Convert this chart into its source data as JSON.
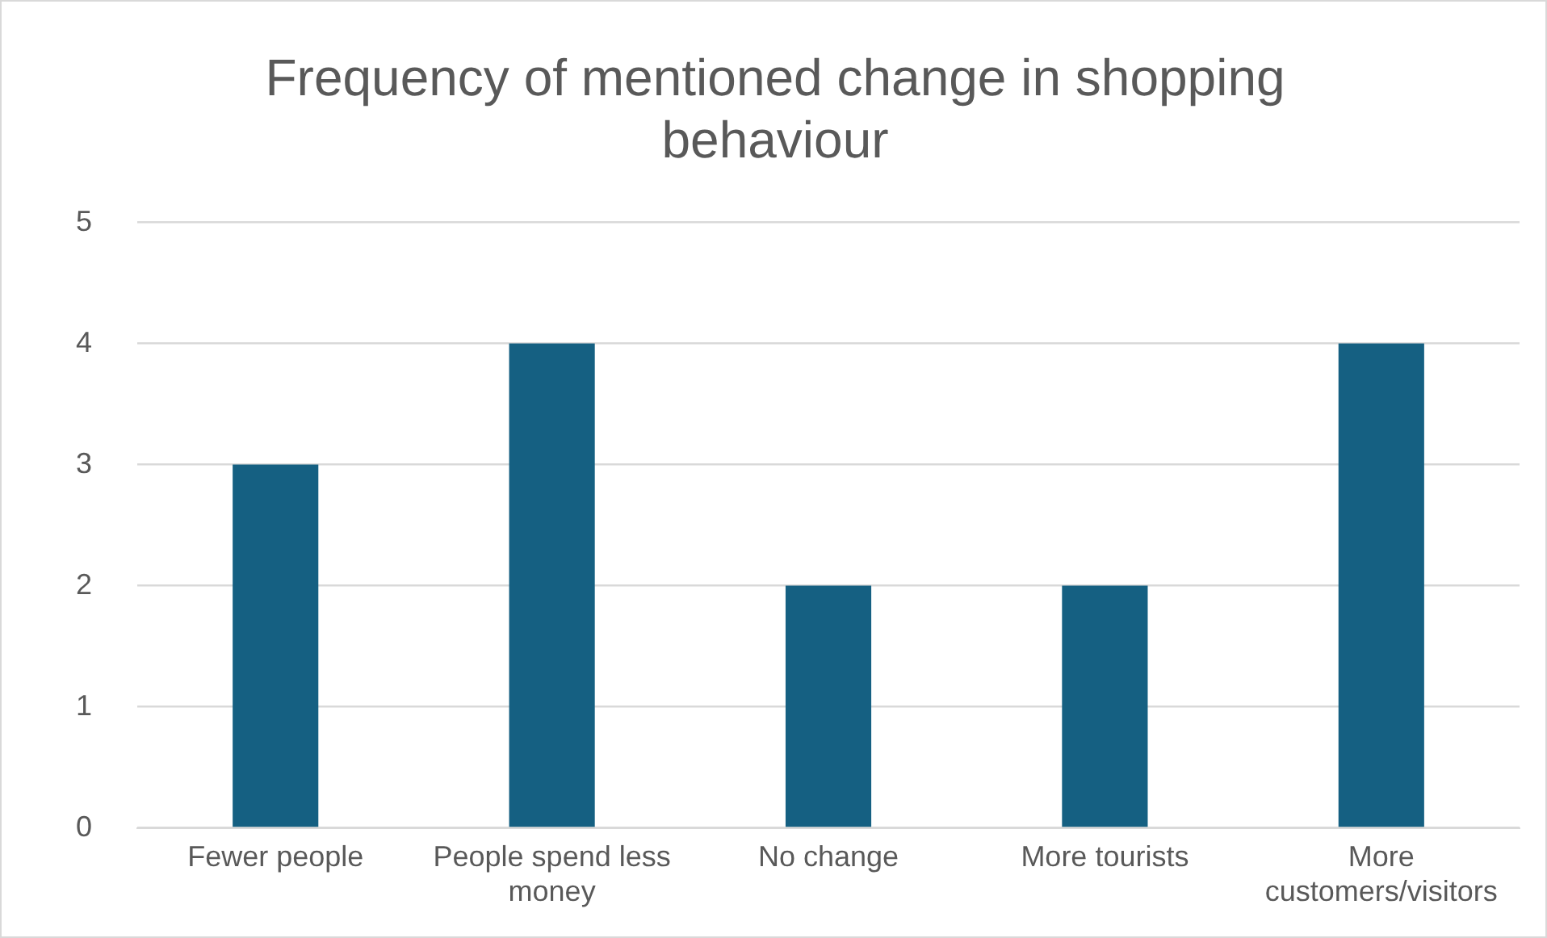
{
  "chart_data": {
    "type": "bar",
    "title": "Frequency of mentioned change in shopping behaviour",
    "categories": [
      "Fewer people",
      "People spend less money",
      "No change",
      "More tourists",
      "More customers/visitors"
    ],
    "values": [
      3,
      4,
      2,
      2,
      4
    ],
    "color": "#156082",
    "ylim": [
      0,
      5
    ],
    "yticks": [
      0,
      1,
      2,
      3,
      4,
      5
    ],
    "grid": "y"
  }
}
